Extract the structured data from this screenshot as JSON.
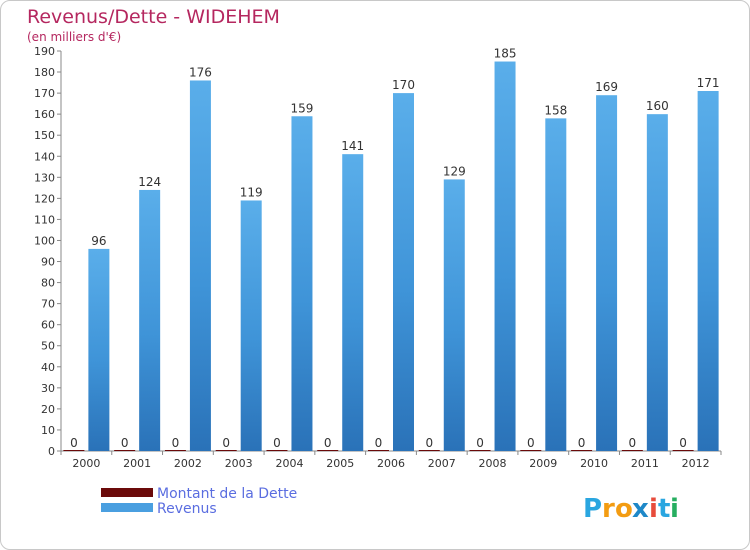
{
  "chart_data": {
    "type": "bar",
    "title": "Revenus/Dette - WIDEHEM",
    "subtitle": "(en milliers d'€)",
    "categories": [
      "2000",
      "2001",
      "2002",
      "2003",
      "2004",
      "2005",
      "2006",
      "2007",
      "2008",
      "2009",
      "2010",
      "2011",
      "2012"
    ],
    "series": [
      {
        "name": "Montant de la Dette",
        "values": [
          0,
          0,
          0,
          0,
          0,
          0,
          0,
          0,
          0,
          0,
          0,
          0,
          0
        ],
        "color": "#6b0a0a"
      },
      {
        "name": "Revenus",
        "values": [
          96,
          124,
          176,
          119,
          159,
          141,
          170,
          129,
          185,
          158,
          169,
          160,
          171
        ],
        "color": "#4a9fe0"
      }
    ],
    "ylim": [
      0,
      190
    ],
    "ytick_step": 10,
    "grid": false,
    "legend_position": "bottom-left"
  },
  "logo": {
    "letters": [
      "P",
      "r",
      "o",
      "x",
      "i",
      "t",
      "i"
    ],
    "colors": [
      "#2aa6e0",
      "#f39c12",
      "#f39c12",
      "#1e88c8",
      "#e74c3c",
      "#2aa6e0",
      "#27ae60"
    ]
  }
}
